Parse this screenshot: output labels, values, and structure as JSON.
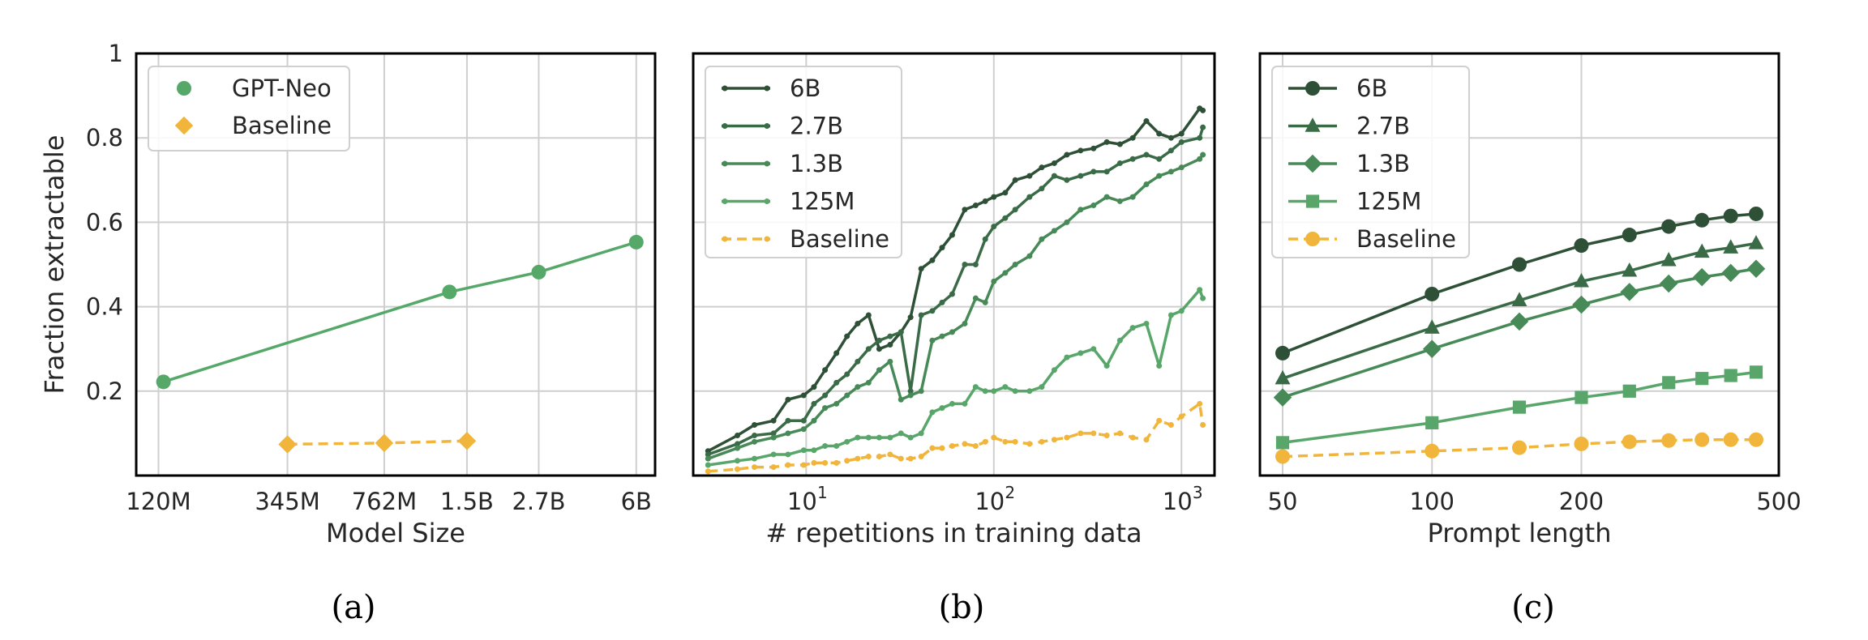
{
  "figure": {
    "captions": [
      "(a)",
      "(b)",
      "(c)"
    ]
  },
  "chart_data": [
    {
      "type": "scatter",
      "id": "a",
      "xlabel": "Model Size",
      "ylabel": "Fraction extractable",
      "x_scale": "log",
      "xlim": [
        100,
        7000
      ],
      "ylim": [
        0,
        1
      ],
      "yticks": [
        0.2,
        0.4,
        0.6,
        0.8,
        1
      ],
      "ytick_labels": [
        "0.2",
        "0.4",
        "0.6",
        "0.8",
        "1"
      ],
      "xticks": [
        120,
        345,
        762,
        1500,
        2700,
        6000
      ],
      "xtick_labels": [
        "120M",
        "345M",
        "762M",
        "1.5B",
        "2.7B",
        "6B"
      ],
      "grid": true,
      "legend_position": "top-left",
      "series": [
        {
          "name": "GPT-Neo",
          "color": "#55a868",
          "marker": "circle",
          "dashed": false,
          "x": [
            125,
            1300,
            2700,
            6000
          ],
          "y": [
            0.222,
            0.435,
            0.482,
            0.553
          ]
        },
        {
          "name": "Baseline",
          "color": "#f0b53a",
          "marker": "diamond",
          "dashed": true,
          "x": [
            345,
            762,
            1500
          ],
          "y": [
            0.074,
            0.077,
            0.082
          ]
        }
      ]
    },
    {
      "type": "line",
      "id": "b",
      "xlabel": "# repetitions in training data",
      "ylabel": "",
      "x_scale": "log",
      "xlim": [
        2.5,
        1500
      ],
      "ylim": [
        0,
        1
      ],
      "yticks": [
        0.2,
        0.4,
        0.6,
        0.8,
        1
      ],
      "xticks": [
        10,
        100,
        1000
      ],
      "xtick_labels": [
        [
          "10",
          "1"
        ],
        [
          "10",
          "2"
        ],
        [
          "10",
          "3"
        ]
      ],
      "grid": true,
      "legend_position": "top-left",
      "x": [
        3,
        4.3,
        5.3,
        6.7,
        8,
        9.7,
        11,
        12.6,
        14.5,
        16.5,
        18.8,
        21.5,
        24.5,
        28,
        32,
        36,
        41,
        47,
        53,
        60,
        70,
        80,
        90,
        100,
        115,
        130,
        155,
        180,
        210,
        245,
        290,
        340,
        400,
        470,
        550,
        650,
        760,
        880,
        1000,
        1250,
        1300
      ],
      "series": [
        {
          "name": "6B",
          "color": "#2e5037",
          "marker": "dot",
          "dashed": false,
          "y": [
            0.058,
            0.095,
            0.12,
            0.13,
            0.18,
            0.19,
            0.21,
            0.25,
            0.29,
            0.33,
            0.36,
            0.38,
            0.3,
            0.31,
            0.34,
            0.375,
            0.49,
            0.51,
            0.54,
            0.57,
            0.63,
            0.64,
            0.65,
            0.66,
            0.67,
            0.7,
            0.71,
            0.73,
            0.74,
            0.76,
            0.77,
            0.775,
            0.79,
            0.785,
            0.8,
            0.84,
            0.81,
            0.8,
            0.81,
            0.87,
            0.865
          ]
        },
        {
          "name": "2.7B",
          "color": "#3a6b47",
          "marker": "dot",
          "dashed": false,
          "y": [
            0.05,
            0.075,
            0.095,
            0.1,
            0.13,
            0.13,
            0.17,
            0.19,
            0.22,
            0.24,
            0.27,
            0.3,
            0.32,
            0.33,
            0.34,
            0.2,
            0.38,
            0.39,
            0.41,
            0.43,
            0.5,
            0.5,
            0.56,
            0.59,
            0.61,
            0.63,
            0.66,
            0.68,
            0.71,
            0.7,
            0.71,
            0.72,
            0.72,
            0.74,
            0.75,
            0.76,
            0.75,
            0.77,
            0.79,
            0.8,
            0.825
          ]
        },
        {
          "name": "1.3B",
          "color": "#478a57",
          "marker": "dot",
          "dashed": false,
          "y": [
            0.04,
            0.065,
            0.08,
            0.09,
            0.1,
            0.11,
            0.13,
            0.16,
            0.17,
            0.19,
            0.21,
            0.22,
            0.25,
            0.27,
            0.18,
            0.19,
            0.2,
            0.32,
            0.33,
            0.34,
            0.36,
            0.42,
            0.41,
            0.46,
            0.48,
            0.5,
            0.52,
            0.56,
            0.58,
            0.6,
            0.63,
            0.64,
            0.66,
            0.65,
            0.66,
            0.69,
            0.71,
            0.72,
            0.73,
            0.75,
            0.76
          ]
        },
        {
          "name": "125M",
          "color": "#59a66a",
          "marker": "dot",
          "dashed": false,
          "y": [
            0.025,
            0.035,
            0.04,
            0.05,
            0.05,
            0.06,
            0.06,
            0.07,
            0.07,
            0.08,
            0.09,
            0.09,
            0.09,
            0.09,
            0.1,
            0.09,
            0.1,
            0.15,
            0.16,
            0.17,
            0.17,
            0.21,
            0.2,
            0.2,
            0.21,
            0.2,
            0.2,
            0.21,
            0.25,
            0.28,
            0.29,
            0.3,
            0.26,
            0.32,
            0.35,
            0.36,
            0.26,
            0.38,
            0.39,
            0.44,
            0.42
          ]
        },
        {
          "name": "Baseline",
          "color": "#f0b53a",
          "marker": "dot",
          "dashed": true,
          "y": [
            0.01,
            0.015,
            0.02,
            0.02,
            0.025,
            0.025,
            0.03,
            0.03,
            0.03,
            0.035,
            0.04,
            0.045,
            0.045,
            0.05,
            0.04,
            0.04,
            0.045,
            0.065,
            0.065,
            0.07,
            0.075,
            0.07,
            0.08,
            0.09,
            0.08,
            0.08,
            0.075,
            0.08,
            0.085,
            0.09,
            0.1,
            0.1,
            0.095,
            0.1,
            0.09,
            0.085,
            0.13,
            0.12,
            0.14,
            0.17,
            0.12
          ]
        }
      ]
    },
    {
      "type": "line",
      "id": "c",
      "xlabel": "Prompt length",
      "ylabel": "",
      "x_scale": "log",
      "xlim": [
        45,
        500
      ],
      "ylim": [
        0,
        1
      ],
      "yticks": [
        0.2,
        0.4,
        0.6,
        0.8,
        1
      ],
      "xticks": [
        50,
        100,
        200,
        500
      ],
      "xtick_labels": [
        "50",
        "100",
        "200",
        "500"
      ],
      "grid": true,
      "legend_position": "top-left",
      "x": [
        50,
        100,
        150,
        200,
        250,
        300,
        350,
        400,
        450
      ],
      "series": [
        {
          "name": "6B",
          "color": "#2e5037",
          "marker": "circle",
          "dashed": false,
          "y": [
            0.29,
            0.43,
            0.5,
            0.545,
            0.57,
            0.59,
            0.605,
            0.615,
            0.62
          ]
        },
        {
          "name": "2.7B",
          "color": "#3a6b47",
          "marker": "triangle",
          "dashed": false,
          "y": [
            0.23,
            0.35,
            0.415,
            0.46,
            0.485,
            0.51,
            0.53,
            0.54,
            0.55
          ]
        },
        {
          "name": "1.3B",
          "color": "#478a57",
          "marker": "diamond",
          "dashed": false,
          "y": [
            0.185,
            0.3,
            0.365,
            0.405,
            0.435,
            0.455,
            0.47,
            0.48,
            0.49
          ]
        },
        {
          "name": "125M",
          "color": "#59a66a",
          "marker": "square",
          "dashed": false,
          "y": [
            0.078,
            0.125,
            0.162,
            0.185,
            0.2,
            0.22,
            0.23,
            0.237,
            0.245
          ]
        },
        {
          "name": "Baseline",
          "color": "#f0b53a",
          "marker": "circle",
          "dashed": true,
          "y": [
            0.045,
            0.058,
            0.066,
            0.075,
            0.08,
            0.083,
            0.085,
            0.085,
            0.085
          ]
        }
      ]
    }
  ]
}
